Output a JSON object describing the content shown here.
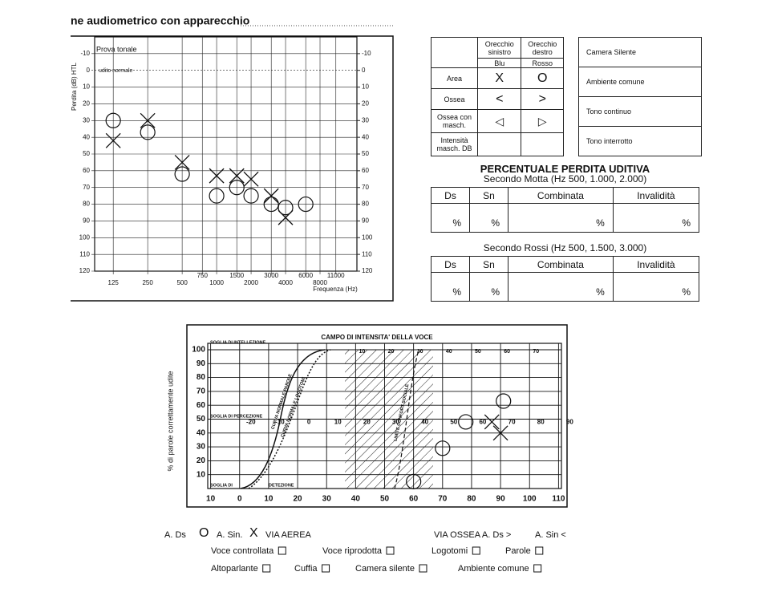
{
  "header": {
    "title": "ne audiometrico con apparecchio"
  },
  "audiogram": {
    "title": "Prova tonale",
    "y_label": "Perdita (dB) HTL",
    "normal_label": "udito normale",
    "x_label": "Frequenza (Hz)",
    "xscale": "log",
    "xlim": [
      86,
      16800
    ],
    "ylim": [
      -20,
      120
    ],
    "xticks": [
      125,
      250,
      500,
      750,
      1000,
      1500,
      2000,
      3000,
      4000,
      6000,
      8000,
      11000
    ],
    "yticks": [
      -10,
      0,
      10,
      20,
      30,
      40,
      50,
      60,
      70,
      80,
      90,
      100,
      110,
      120
    ],
    "y2ticks": [
      -10,
      0,
      10,
      20,
      30,
      40,
      50,
      60,
      70,
      80,
      90,
      100,
      110,
      120
    ],
    "right_ear": {
      "x": [
        125,
        250,
        500,
        1000,
        1500,
        2000,
        3000,
        4000,
        6000
      ],
      "values": [
        30,
        37,
        62,
        75,
        70,
        75,
        80,
        82,
        80
      ]
    },
    "left_ear": {
      "x": [
        125,
        250,
        500,
        1000,
        1500,
        2000,
        3000,
        4000
      ],
      "values": [
        42,
        30,
        55,
        63,
        63,
        65,
        75,
        88
      ]
    }
  },
  "symbols": {
    "columns": [
      "Orecchio sinistro",
      "Orecchio destro"
    ],
    "colors": [
      "Blu",
      "Rosso"
    ],
    "rows": [
      {
        "label": "Area",
        "left": "X",
        "right": "O"
      },
      {
        "label": "Ossea",
        "left": "<",
        "right": ">"
      },
      {
        "label": "Ossea con masch.",
        "left": "◁",
        "right": "▷"
      },
      {
        "label": "Intensità masch. DB"
      }
    ]
  },
  "conditions": [
    "Camera Silente",
    "Ambiente comune",
    "Tono continuo",
    "Tono interrotto"
  ],
  "percent": {
    "title": "PERCENTUALE PERDITA UDITIVA",
    "tables": [
      {
        "subtitle": "Secondo Motta (Hz 500, 1.000, 2.000)",
        "headers": [
          "Ds",
          "Sn",
          "Combinata",
          "Invalidità"
        ],
        "units": [
          "%",
          "%",
          "%",
          "%"
        ]
      },
      {
        "subtitle": "Secondo Rossi (Hz 500, 1.500, 3.000)",
        "headers": [
          "Ds",
          "Sn",
          "Combinata",
          "Invalidità"
        ],
        "units": [
          "%",
          "%",
          "%",
          "%"
        ]
      }
    ]
  },
  "speech": {
    "title": "CAMPO DI INTENSITA' DELLA VOCE",
    "y_label": "% di parole correttamente udite",
    "threshold_labels": [
      "SOGLIA DI INTELLEZIONE",
      "SOGLIA DI PERCEZIONE",
      "SOGLIA DI",
      "DETEZIONE"
    ],
    "curve_labels": [
      "CURVA NORMALE PAROLE",
      "CURVA NORMALE LOGOTOMI",
      "LIMITE CONFORT SOCIALE"
    ],
    "xlim": [
      -11,
      111
    ],
    "ylim": [
      0,
      100
    ],
    "xticks": [
      {
        "value": -10,
        "label": "10"
      },
      0,
      10,
      20,
      30,
      40,
      50,
      60,
      70,
      80,
      90,
      100,
      110
    ],
    "yticks": [
      10,
      20,
      30,
      40,
      50,
      60,
      70,
      80,
      90,
      100
    ],
    "inner_ticks": [
      -20,
      -10,
      0,
      10,
      20,
      30,
      40,
      50,
      60,
      70,
      80,
      90
    ],
    "top_ticks": [
      10,
      20,
      30,
      40,
      50,
      60,
      70
    ],
    "right_ear": {
      "x": [
        60,
        70,
        78,
        91
      ],
      "values": [
        5,
        29,
        48,
        63
      ]
    },
    "left_ear": {
      "x": [
        87,
        90
      ],
      "values": [
        48,
        40
      ]
    }
  },
  "legend": {
    "line1": [
      "A. Ds",
      "O",
      "A. Sin.",
      "X",
      "VIA AEREA",
      "VIA OSSEA A. Ds >",
      "A. Sin <"
    ],
    "line2": [
      "Voce controllata",
      "Voce riprodotta",
      "Logotomi",
      "Parole"
    ],
    "line3": [
      "Altoparlante",
      "Cuffia",
      "Camera silente",
      "Ambiente comune"
    ]
  }
}
